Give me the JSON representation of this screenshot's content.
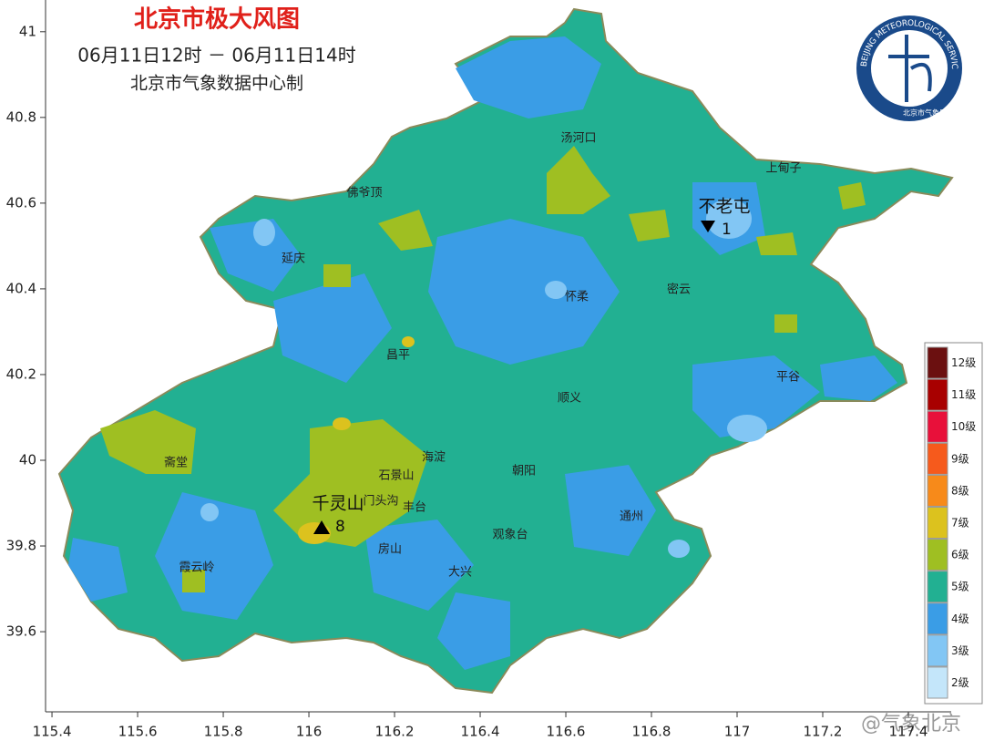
{
  "header": {
    "title": "北京市极大风图",
    "period": "06月11日12时 － 06月11日14时",
    "maker": "北京市气象数据中心制"
  },
  "axes": {
    "xlim": [
      115.385,
      117.5
    ],
    "xticks": [
      115.4,
      115.6,
      115.8,
      116,
      116.2,
      116.4,
      116.6,
      116.8,
      117,
      117.2,
      117.4
    ],
    "ylim": [
      39.413,
      41.074
    ],
    "yticks": [
      39.6,
      39.8,
      40,
      40.2,
      40.4,
      40.6,
      40.8,
      41
    ]
  },
  "places": [
    "汤河口",
    "上甸子",
    "佛爷顶",
    "延庆",
    "怀柔",
    "密云",
    "昌平",
    "平谷",
    "顺义",
    "海淀",
    "石景山",
    "朝阳",
    "门头沟",
    "丰台",
    "通州",
    "观象台",
    "房山",
    "大兴",
    "霞云岭",
    "斋堂"
  ],
  "extremes": [
    {
      "name": "不老屯",
      "value": 1
    },
    {
      "name": "千灵山",
      "value": 8
    }
  ],
  "legend": [
    {
      "label": "12级",
      "color": "#6b1010"
    },
    {
      "label": "11级",
      "color": "#a80000"
    },
    {
      "label": "10级",
      "color": "#e8103a"
    },
    {
      "label": "9级",
      "color": "#f65a1c"
    },
    {
      "label": "8级",
      "color": "#f78a1a"
    },
    {
      "label": "7级",
      "color": "#dcc21e"
    },
    {
      "label": "6级",
      "color": "#9fbf22"
    },
    {
      "label": "5级",
      "color": "#22b092"
    },
    {
      "label": "4级",
      "color": "#3a9de6"
    },
    {
      "label": "3级",
      "color": "#82c6f4"
    },
    {
      "label": "2级",
      "color": "#c4e6fa"
    }
  ],
  "logo": {
    "ring": "BEIJING METEOROLOGICAL SERVICE",
    "org": "北京市气象局"
  },
  "watermark": "@气象北京"
}
